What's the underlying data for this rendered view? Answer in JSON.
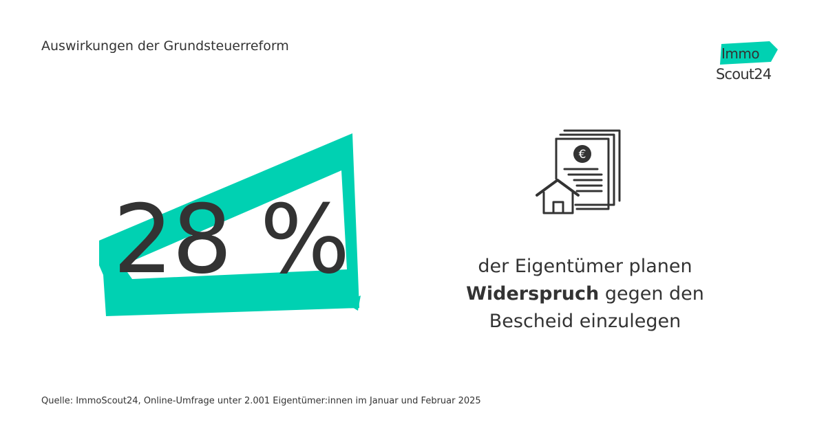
{
  "header": {
    "subtitle": "Auswirkungen der Grundsteuerreform"
  },
  "logo": {
    "line1": "Immo",
    "line2": "Scout24",
    "accent_color": "#00D1B2"
  },
  "stat": {
    "value": "28 %",
    "text_line1": "der Eigentümer planen",
    "text_bold": "Widerspruch",
    "text_line2_rest": "gegen den",
    "text_line3": "Bescheid einzulegen"
  },
  "icon": {
    "name": "tax-document-house-icon",
    "symbol": "€"
  },
  "footer": {
    "source": "Quelle: ImmoScout24, Online-Umfrage unter 2.001 Eigentümer:innen im Januar und Februar 2025"
  },
  "colors": {
    "accent": "#00D1B2",
    "text": "#333333",
    "background": "#FFFFFF"
  }
}
